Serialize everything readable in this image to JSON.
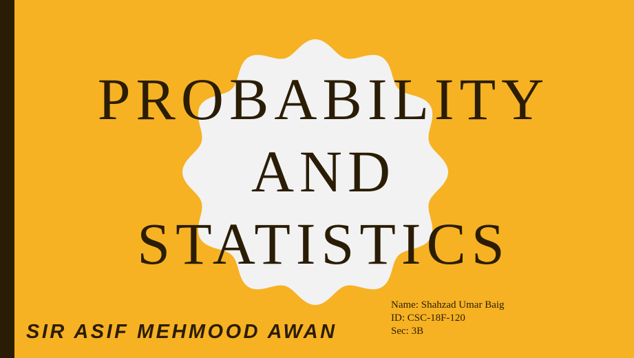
{
  "slide": {
    "title_lines": [
      "PROBABILITY",
      "AND",
      "STATISTICS"
    ],
    "presenter": "SIR ASIF MEHMOOD AWAN",
    "student": {
      "name": "Name: Shahzad Umar Baig",
      "id": "ID: CSC-18F-120",
      "section": "Sec: 3B"
    }
  },
  "colors": {
    "background": "#F6B223",
    "sidebar": "#2B1D05",
    "badge": "#F2F2F2",
    "text": "#2B1D05"
  },
  "icons": {
    "badge": "scalloped-circle-shape"
  }
}
